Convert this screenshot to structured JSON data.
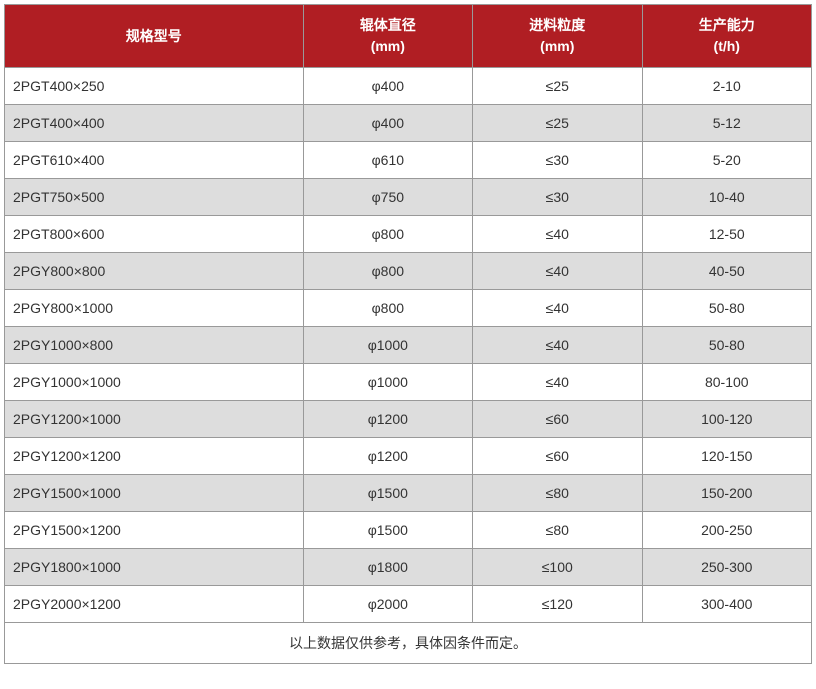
{
  "table": {
    "type": "table",
    "header_bg_color": "#b01e23",
    "header_text_color": "#ffffff",
    "border_color": "#999999",
    "row_odd_bg": "#ffffff",
    "row_even_bg": "#dddddd",
    "text_color": "#333333",
    "font_size": 14,
    "columns": [
      {
        "line1": "规格型号",
        "line2": "",
        "width_pct": 37,
        "align": "left"
      },
      {
        "line1": "辊体直径",
        "line2": "(mm)",
        "width_pct": 21,
        "align": "center"
      },
      {
        "line1": "进料粒度",
        "line2": "(mm)",
        "width_pct": 21,
        "align": "center"
      },
      {
        "line1": "生产能力",
        "line2": "(t/h)",
        "width_pct": 21,
        "align": "center"
      }
    ],
    "rows": [
      {
        "model": "2PGT400×250",
        "diameter": "φ400",
        "feed": "≤25",
        "capacity": "2-10"
      },
      {
        "model": "2PGT400×400",
        "diameter": "φ400",
        "feed": "≤25",
        "capacity": "5-12"
      },
      {
        "model": "2PGT610×400",
        "diameter": "φ610",
        "feed": "≤30",
        "capacity": "5-20"
      },
      {
        "model": "2PGT750×500",
        "diameter": "φ750",
        "feed": "≤30",
        "capacity": "10-40"
      },
      {
        "model": "2PGT800×600",
        "diameter": "φ800",
        "feed": "≤40",
        "capacity": "12-50"
      },
      {
        "model": "2PGY800×800",
        "diameter": "φ800",
        "feed": "≤40",
        "capacity": "40-50"
      },
      {
        "model": "2PGY800×1000",
        "diameter": "φ800",
        "feed": "≤40",
        "capacity": "50-80"
      },
      {
        "model": "2PGY1000×800",
        "diameter": "φ1000",
        "feed": "≤40",
        "capacity": "50-80"
      },
      {
        "model": "2PGY1000×1000",
        "diameter": "φ1000",
        "feed": "≤40",
        "capacity": "80-100"
      },
      {
        "model": "2PGY1200×1000",
        "diameter": "φ1200",
        "feed": "≤60",
        "capacity": "100-120"
      },
      {
        "model": "2PGY1200×1200",
        "diameter": "φ1200",
        "feed": "≤60",
        "capacity": "120-150"
      },
      {
        "model": "2PGY1500×1000",
        "diameter": "φ1500",
        "feed": "≤80",
        "capacity": "150-200"
      },
      {
        "model": "2PGY1500×1200",
        "diameter": "φ1500",
        "feed": "≤80",
        "capacity": "200-250"
      },
      {
        "model": "2PGY1800×1000",
        "diameter": "φ1800",
        "feed": "≤100",
        "capacity": "250-300"
      },
      {
        "model": "2PGY2000×1200",
        "diameter": "φ2000",
        "feed": "≤120",
        "capacity": "300-400"
      }
    ],
    "footer_note": "以上数据仅供参考，具体因条件而定。"
  }
}
